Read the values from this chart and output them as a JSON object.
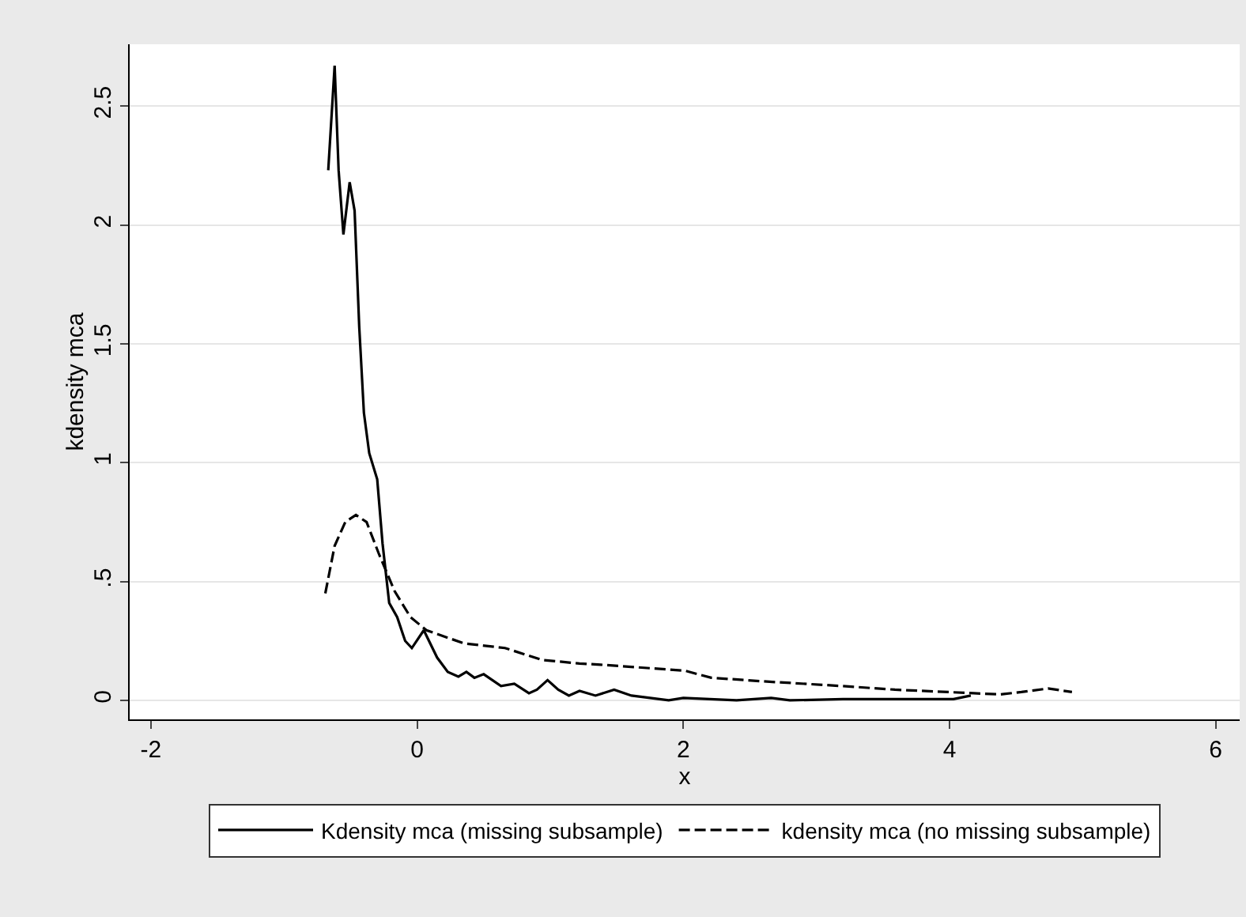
{
  "chart_data": {
    "type": "line",
    "xlabel": "x",
    "ylabel": "kdensity mca",
    "series": [
      {
        "name": "Kdensity mca (missing subsample)",
        "color": "#000000",
        "line_style": "solid",
        "x": [
          -0.668,
          -0.62,
          -0.59,
          -0.554,
          -0.507,
          -0.47,
          -0.435,
          -0.4,
          -0.36,
          -0.3,
          -0.26,
          -0.21,
          -0.15,
          -0.09,
          -0.04,
          0.05,
          0.15,
          0.23,
          0.31,
          0.37,
          0.43,
          0.5,
          0.63,
          0.73,
          0.84,
          0.9,
          0.98,
          1.06,
          1.14,
          1.22,
          1.34,
          1.48,
          1.61,
          1.89,
          2.0,
          2.4,
          2.66,
          2.8,
          3.2,
          4.03,
          4.16
        ],
        "values": [
          2.23,
          2.67,
          2.23,
          1.96,
          2.18,
          2.06,
          1.57,
          1.21,
          1.04,
          0.93,
          0.66,
          0.41,
          0.35,
          0.25,
          0.22,
          0.295,
          0.18,
          0.12,
          0.1,
          0.12,
          0.095,
          0.11,
          0.06,
          0.07,
          0.03,
          0.045,
          0.085,
          0.045,
          0.02,
          0.04,
          0.02,
          0.045,
          0.02,
          0.0,
          0.01,
          0.0,
          0.01,
          0.0,
          0.005,
          0.005,
          0.02
        ]
      },
      {
        "name": "kdensity mca (no missing subsample)",
        "color": "#000000",
        "line_style": "dashed",
        "x": [
          -0.69,
          -0.62,
          -0.54,
          -0.46,
          -0.38,
          -0.29,
          -0.17,
          -0.05,
          0.07,
          0.35,
          0.66,
          0.94,
          1.22,
          1.38,
          2.01,
          2.21,
          2.6,
          3.2,
          3.59,
          3.99,
          4.18,
          4.38,
          4.54,
          4.74,
          4.92
        ],
        "values": [
          0.45,
          0.65,
          0.75,
          0.78,
          0.75,
          0.62,
          0.46,
          0.35,
          0.295,
          0.24,
          0.22,
          0.17,
          0.155,
          0.15,
          0.125,
          0.095,
          0.08,
          0.06,
          0.045,
          0.035,
          0.03,
          0.025,
          0.035,
          0.05,
          0.035
        ]
      }
    ],
    "xlim": [
      -2.16,
      6.18
    ],
    "xticks": [
      -2,
      0,
      2,
      4,
      6
    ],
    "ylim": [
      -0.08,
      2.76
    ],
    "yticks": [
      0,
      {
        "value": 0.5,
        "label": ".5"
      },
      1,
      1.5,
      2,
      2.5
    ],
    "grid": "y",
    "legend": "bottom",
    "marker": "none"
  }
}
